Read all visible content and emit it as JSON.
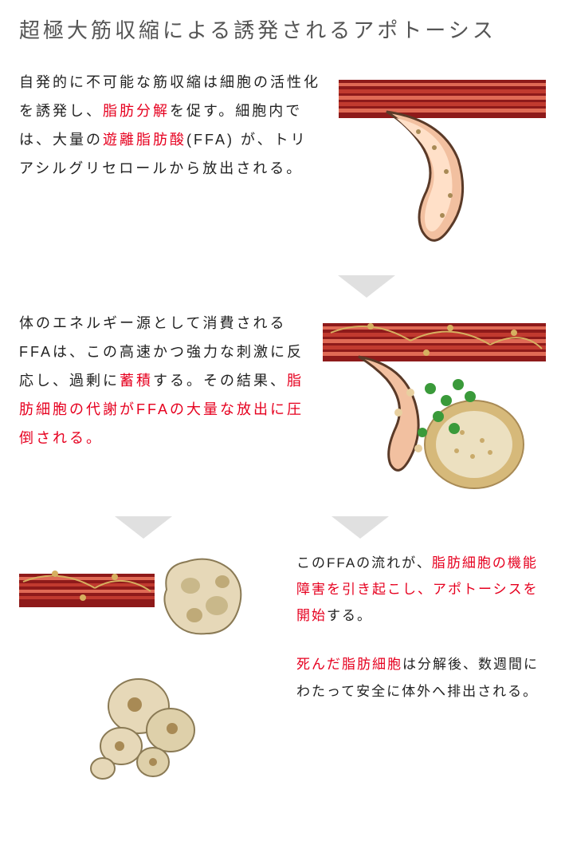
{
  "title": "超極大筋収縮による誘発されるアポトーシス",
  "colors": {
    "highlight": "#e6001f",
    "title_color": "#555555",
    "body_color": "#222222",
    "arrow_color": "#e0e0e0",
    "muscle_dark": "#8e1a1a",
    "muscle_mid": "#c13a2f",
    "muscle_light": "#e06a55",
    "vessel_outer": "#5a3a28",
    "vessel_inner": "#f2c0a0",
    "vessel_shadow": "#b07a55",
    "fat_cell": "#d6b97a",
    "fat_cell_light": "#ece0c0",
    "fat_cell_dark": "#a88a55",
    "green_particle": "#3a9a3a",
    "nerve": "#d6b060"
  },
  "typography": {
    "title_fontsize": 26,
    "title_letter_spacing": 4,
    "body_fontsize": 18,
    "body_line_height": 2.0,
    "body_letter_spacing": 3,
    "small_body_fontsize": 17
  },
  "section1": {
    "illustration": "muscle-with-vessel",
    "text_parts": [
      {
        "t": "自発的に不可能な筋収縮は細胞の活性化を誘発し、",
        "hl": false
      },
      {
        "t": "脂肪分解",
        "hl": true
      },
      {
        "t": "を促す。細胞内では、大量の",
        "hl": false
      },
      {
        "t": "遊離脂肪酸",
        "hl": true
      },
      {
        "t": "(FFA) が、トリアシルグリセロールから放出される。",
        "hl": false
      }
    ]
  },
  "section2": {
    "illustration": "muscle-vessel-fat-particles",
    "text_parts": [
      {
        "t": "体のエネルギー源として消費されるFFAは、この高速かつ強力な刺激に反応し、過剰に",
        "hl": false
      },
      {
        "t": "蓄積",
        "hl": true
      },
      {
        "t": "する。その結果、",
        "hl": false
      },
      {
        "t": "脂肪細胞の代謝がFFAの大量な放出に圧倒される。",
        "hl": true
      }
    ]
  },
  "section3": {
    "illustration_left": "muscle-nerve",
    "illustration_cell_top": "damaged-fat-cell",
    "illustration_cell_bottom": "fat-cell-cluster",
    "block_a_parts": [
      {
        "t": "このFFAの流れが、",
        "hl": false
      },
      {
        "t": "脂肪細胞の機能障害を引き起こし、アポトーシスを開始",
        "hl": true
      },
      {
        "t": "する。",
        "hl": false
      }
    ],
    "block_b_parts": [
      {
        "t": "死んだ脂肪細胞",
        "hl": true
      },
      {
        "t": "は分解後、数週間にわたって安全に体外へ排出される。",
        "hl": false
      }
    ]
  },
  "arrows": {
    "shape": "triangle-down",
    "width": 72,
    "height": 28,
    "count_after_sec1": 1,
    "count_after_sec2": 2
  }
}
